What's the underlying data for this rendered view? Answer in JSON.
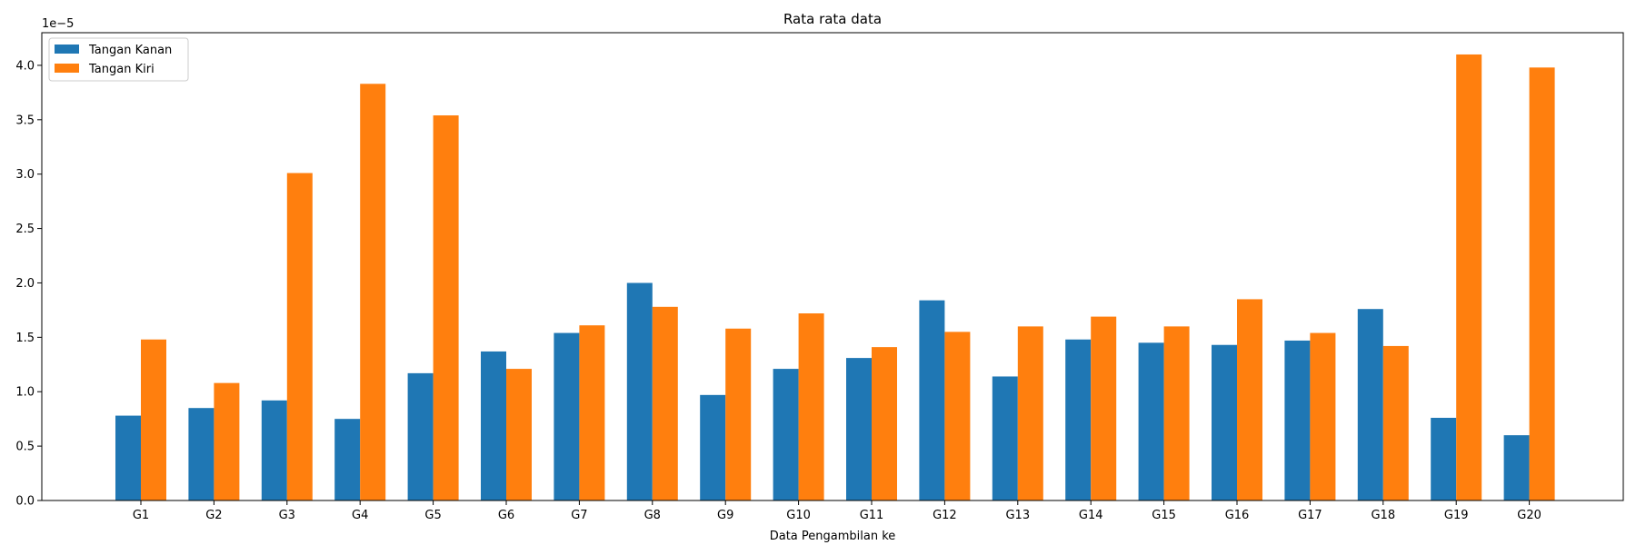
{
  "chart_data": {
    "type": "bar",
    "title": "Rata rata data",
    "xlabel": "Data Pengambilan ke",
    "ylabel": "",
    "offset_text": "1e−5",
    "scale": 1e-05,
    "categories": [
      "G1",
      "G2",
      "G3",
      "G4",
      "G5",
      "G6",
      "G7",
      "G8",
      "G9",
      "G10",
      "G11",
      "G12",
      "G13",
      "G14",
      "G15",
      "G16",
      "G17",
      "G18",
      "G19",
      "G20"
    ],
    "series": [
      {
        "name": "Tangan Kanan",
        "color": "#1f77b4",
        "values": [
          0.78,
          0.85,
          0.92,
          0.75,
          1.17,
          1.37,
          1.54,
          2.0,
          0.97,
          1.21,
          1.31,
          1.84,
          1.14,
          1.48,
          1.45,
          1.43,
          1.47,
          1.76,
          0.76,
          0.6
        ]
      },
      {
        "name": "Tangan Kiri",
        "color": "#ff7f0e",
        "values": [
          1.48,
          1.08,
          3.01,
          3.83,
          3.54,
          1.21,
          1.61,
          1.78,
          1.58,
          1.72,
          1.41,
          1.55,
          1.6,
          1.69,
          1.6,
          1.85,
          1.54,
          1.42,
          4.1,
          3.98
        ]
      }
    ],
    "ylim": [
      0,
      4.3
    ],
    "yticks": [
      "0.0",
      "0.5",
      "1.0",
      "1.5",
      "2.0",
      "2.5",
      "3.0",
      "3.5",
      "4.0"
    ],
    "grid": false,
    "legend_position": "top-left"
  }
}
